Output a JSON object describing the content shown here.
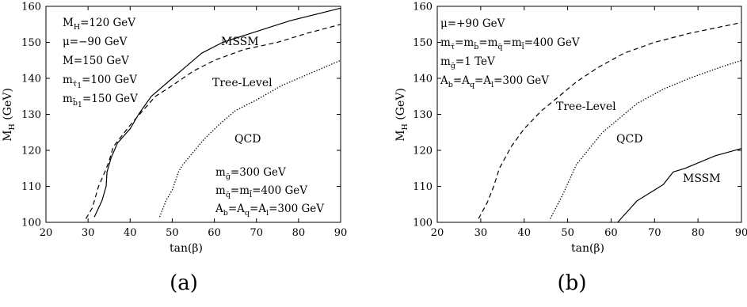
{
  "chart_data": [
    {
      "type": "line",
      "panel": "(a)",
      "xlabel": "tan(β)",
      "ylabel": "M_H (GeV)",
      "xlim": [
        20,
        90
      ],
      "ylim": [
        100,
        160
      ],
      "xticks": [
        20,
        30,
        40,
        50,
        60,
        70,
        80,
        90
      ],
      "yticks": [
        100,
        110,
        120,
        130,
        140,
        150,
        160
      ],
      "grid": false,
      "series": [
        {
          "name": "MSSM",
          "style": "solid",
          "x": [
            31.5,
            33.3,
            34.3,
            34.5,
            35.5,
            37,
            40,
            42,
            45,
            50,
            53,
            57,
            62,
            70,
            78,
            90
          ],
          "y": [
            101.5,
            106,
            110,
            114,
            118,
            122,
            126,
            130,
            135,
            140,
            143,
            147,
            150,
            153,
            156,
            159.5
          ]
        },
        {
          "name": "Tree-Level",
          "style": "dashed",
          "x": [
            29.5,
            31,
            32.5,
            34,
            35,
            36,
            38,
            40,
            43,
            46,
            50,
            55,
            60,
            67,
            75,
            82,
            90
          ],
          "y": [
            101,
            104,
            110,
            114,
            117,
            121,
            124,
            127,
            131,
            135,
            138,
            142,
            145,
            148,
            150,
            152.5,
            155
          ]
        },
        {
          "name": "QCD",
          "style": "dotted",
          "x": [
            47,
            48.5,
            50,
            51.5,
            52.5,
            55,
            57.5,
            61,
            65,
            70,
            76,
            82,
            90
          ],
          "y": [
            101.5,
            106,
            109,
            114,
            116,
            119.5,
            123,
            127,
            131,
            134,
            138,
            141,
            145
          ]
        }
      ],
      "annotations": [
        {
          "base": "M",
          "sub": "H",
          "rest": "=120 GeV"
        },
        {
          "base": "μ=−90 GeV",
          "sub": "",
          "rest": ""
        },
        {
          "base": "M=150 GeV",
          "sub": "",
          "rest": ""
        },
        {
          "base": "m",
          "sub": "̃τ 1",
          "rest": "=100 GeV"
        },
        {
          "base": "m",
          "sub": "̃b 1",
          "rest": "=150 GeV"
        }
      ],
      "annotations_lower": [
        {
          "text": "m̃g=300 GeV"
        },
        {
          "text": "m̃q=m̃l=400 GeV"
        },
        {
          "text": "Ab=Aq=Al=300 GeV"
        }
      ]
    },
    {
      "type": "line",
      "panel": "(b)",
      "xlabel": "tan(β)",
      "ylabel": "M_H (GeV)",
      "xlim": [
        20,
        90
      ],
      "ylim": [
        100,
        160
      ],
      "xticks": [
        20,
        30,
        40,
        50,
        60,
        70,
        80,
        90
      ],
      "yticks": [
        100,
        110,
        120,
        130,
        140,
        150,
        160
      ],
      "grid": false,
      "series": [
        {
          "name": "Tree-Level",
          "style": "dashed",
          "x": [
            29.5,
            31.5,
            33,
            34.3,
            37,
            40,
            44,
            48,
            52,
            57,
            63,
            70,
            78,
            90
          ],
          "y": [
            101,
            105.5,
            110,
            115,
            121,
            126,
            131,
            135,
            139,
            143,
            147,
            150,
            152.5,
            155.5
          ]
        },
        {
          "name": "QCD",
          "style": "dotted",
          "x": [
            46,
            47.5,
            49,
            50.5,
            52,
            55,
            58,
            62,
            66,
            72,
            78,
            85,
            90
          ],
          "y": [
            101,
            104.5,
            108,
            112,
            116,
            120.5,
            125,
            129,
            133,
            137,
            140,
            143,
            145
          ]
        },
        {
          "name": "MSSM",
          "style": "solid",
          "x": [
            61.5,
            63,
            66,
            70,
            72,
            74.3,
            77,
            80,
            84,
            90
          ],
          "y": [
            100,
            102,
            106,
            109,
            110.5,
            114,
            115,
            116.5,
            118.5,
            120.5
          ]
        }
      ],
      "annotations": [
        "μ=+90 GeV",
        "m̃τ=m̃b=m̃q=m̃l=400 GeV",
        "m̃g=1 TeV",
        "Ab=Aq=Al=300 GeV"
      ]
    }
  ],
  "panel_a_label": "(a)",
  "panel_b_label": "(b)"
}
